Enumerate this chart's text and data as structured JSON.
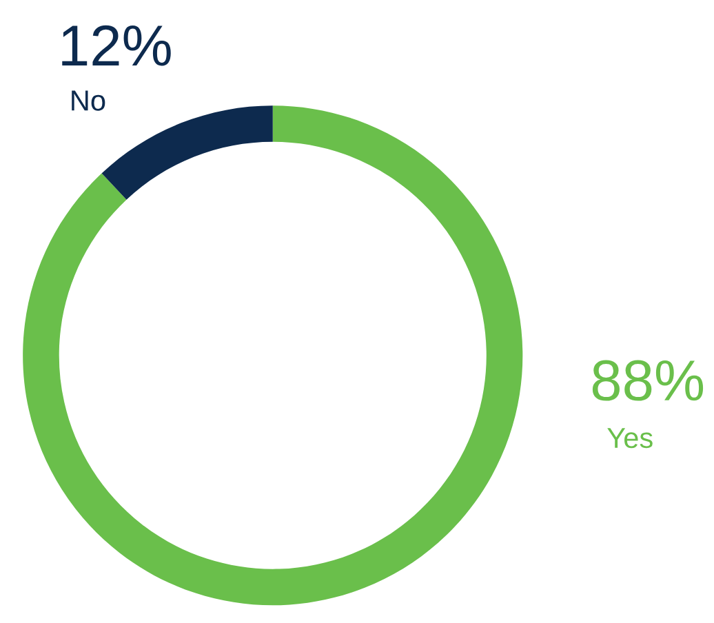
{
  "chart_data": {
    "type": "donut",
    "categories": [
      "Yes",
      "No"
    ],
    "values": [
      88,
      12
    ],
    "colors": [
      "#6abf4b",
      "#0d2a4e"
    ],
    "value_labels": [
      "88%",
      "12%"
    ],
    "legend": false
  }
}
